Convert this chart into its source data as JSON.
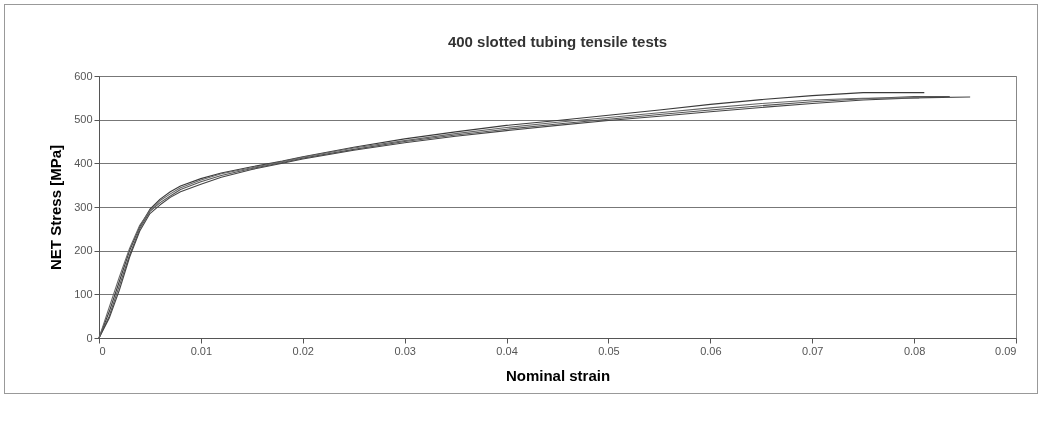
{
  "chart_data": {
    "type": "line",
    "title": "400 slotted tubing tensile tests",
    "xlabel": "Nominal strain",
    "ylabel": "NET Stress [MPa]",
    "xlim": [
      0,
      0.09
    ],
    "xticks": [
      0,
      0.01,
      0.02,
      0.03,
      0.04,
      0.05,
      0.06,
      0.07,
      0.08,
      0.09
    ],
    "ylim": [
      0,
      600
    ],
    "yticks": [
      0,
      100,
      200,
      300,
      400,
      500,
      600
    ],
    "grid": "y",
    "line_style": "solid",
    "series": [
      {
        "color": "#3a3a3a",
        "x": [
          0,
          0.001,
          0.002,
          0.003,
          0.004,
          0.005,
          0.006,
          0.007,
          0.008,
          0.01,
          0.012,
          0.015,
          0.018,
          0.02,
          0.025,
          0.03,
          0.035,
          0.04,
          0.045,
          0.05,
          0.055,
          0.06,
          0.065,
          0.07,
          0.075,
          0.081
        ],
        "values": [
          0,
          60,
          130,
          200,
          255,
          295,
          318,
          335,
          348,
          365,
          378,
          392,
          405,
          415,
          437,
          456,
          472,
          487,
          498,
          510,
          522,
          535,
          546,
          555,
          562,
          562
        ]
      },
      {
        "color": "#555555",
        "x": [
          0,
          0.001,
          0.002,
          0.003,
          0.004,
          0.005,
          0.006,
          0.007,
          0.008,
          0.01,
          0.012,
          0.015,
          0.018,
          0.02,
          0.025,
          0.03,
          0.035,
          0.04,
          0.045,
          0.05,
          0.055,
          0.06,
          0.065,
          0.07,
          0.075,
          0.08,
          0.0835
        ],
        "values": [
          0,
          50,
          120,
          190,
          250,
          290,
          310,
          325,
          340,
          358,
          372,
          388,
          402,
          412,
          432,
          450,
          465,
          478,
          490,
          501,
          512,
          522,
          532,
          541,
          548,
          553,
          553
        ]
      },
      {
        "color": "#444444",
        "x": [
          0,
          0.001,
          0.002,
          0.003,
          0.004,
          0.005,
          0.006,
          0.007,
          0.008,
          0.01,
          0.012,
          0.015,
          0.018,
          0.02,
          0.025,
          0.03,
          0.035,
          0.04,
          0.045,
          0.05,
          0.055,
          0.06,
          0.065,
          0.07,
          0.075,
          0.08,
          0.0855
        ],
        "values": [
          0,
          45,
          110,
          185,
          245,
          285,
          305,
          322,
          335,
          352,
          368,
          386,
          400,
          410,
          430,
          447,
          462,
          475,
          487,
          498,
          508,
          518,
          528,
          537,
          545,
          550,
          552
        ]
      },
      {
        "color": "#666666",
        "x": [
          0,
          0.001,
          0.002,
          0.003,
          0.004,
          0.005,
          0.006,
          0.007,
          0.008,
          0.01,
          0.012,
          0.015,
          0.018,
          0.02,
          0.025,
          0.03,
          0.035,
          0.04,
          0.045,
          0.05,
          0.055,
          0.06,
          0.065,
          0.07,
          0.075,
          0.0805
        ],
        "values": [
          0,
          70,
          140,
          205,
          258,
          292,
          315,
          330,
          344,
          362,
          376,
          390,
          404,
          414,
          435,
          452,
          468,
          482,
          494,
          505,
          516,
          527,
          537,
          545,
          549,
          550
        ]
      }
    ]
  }
}
